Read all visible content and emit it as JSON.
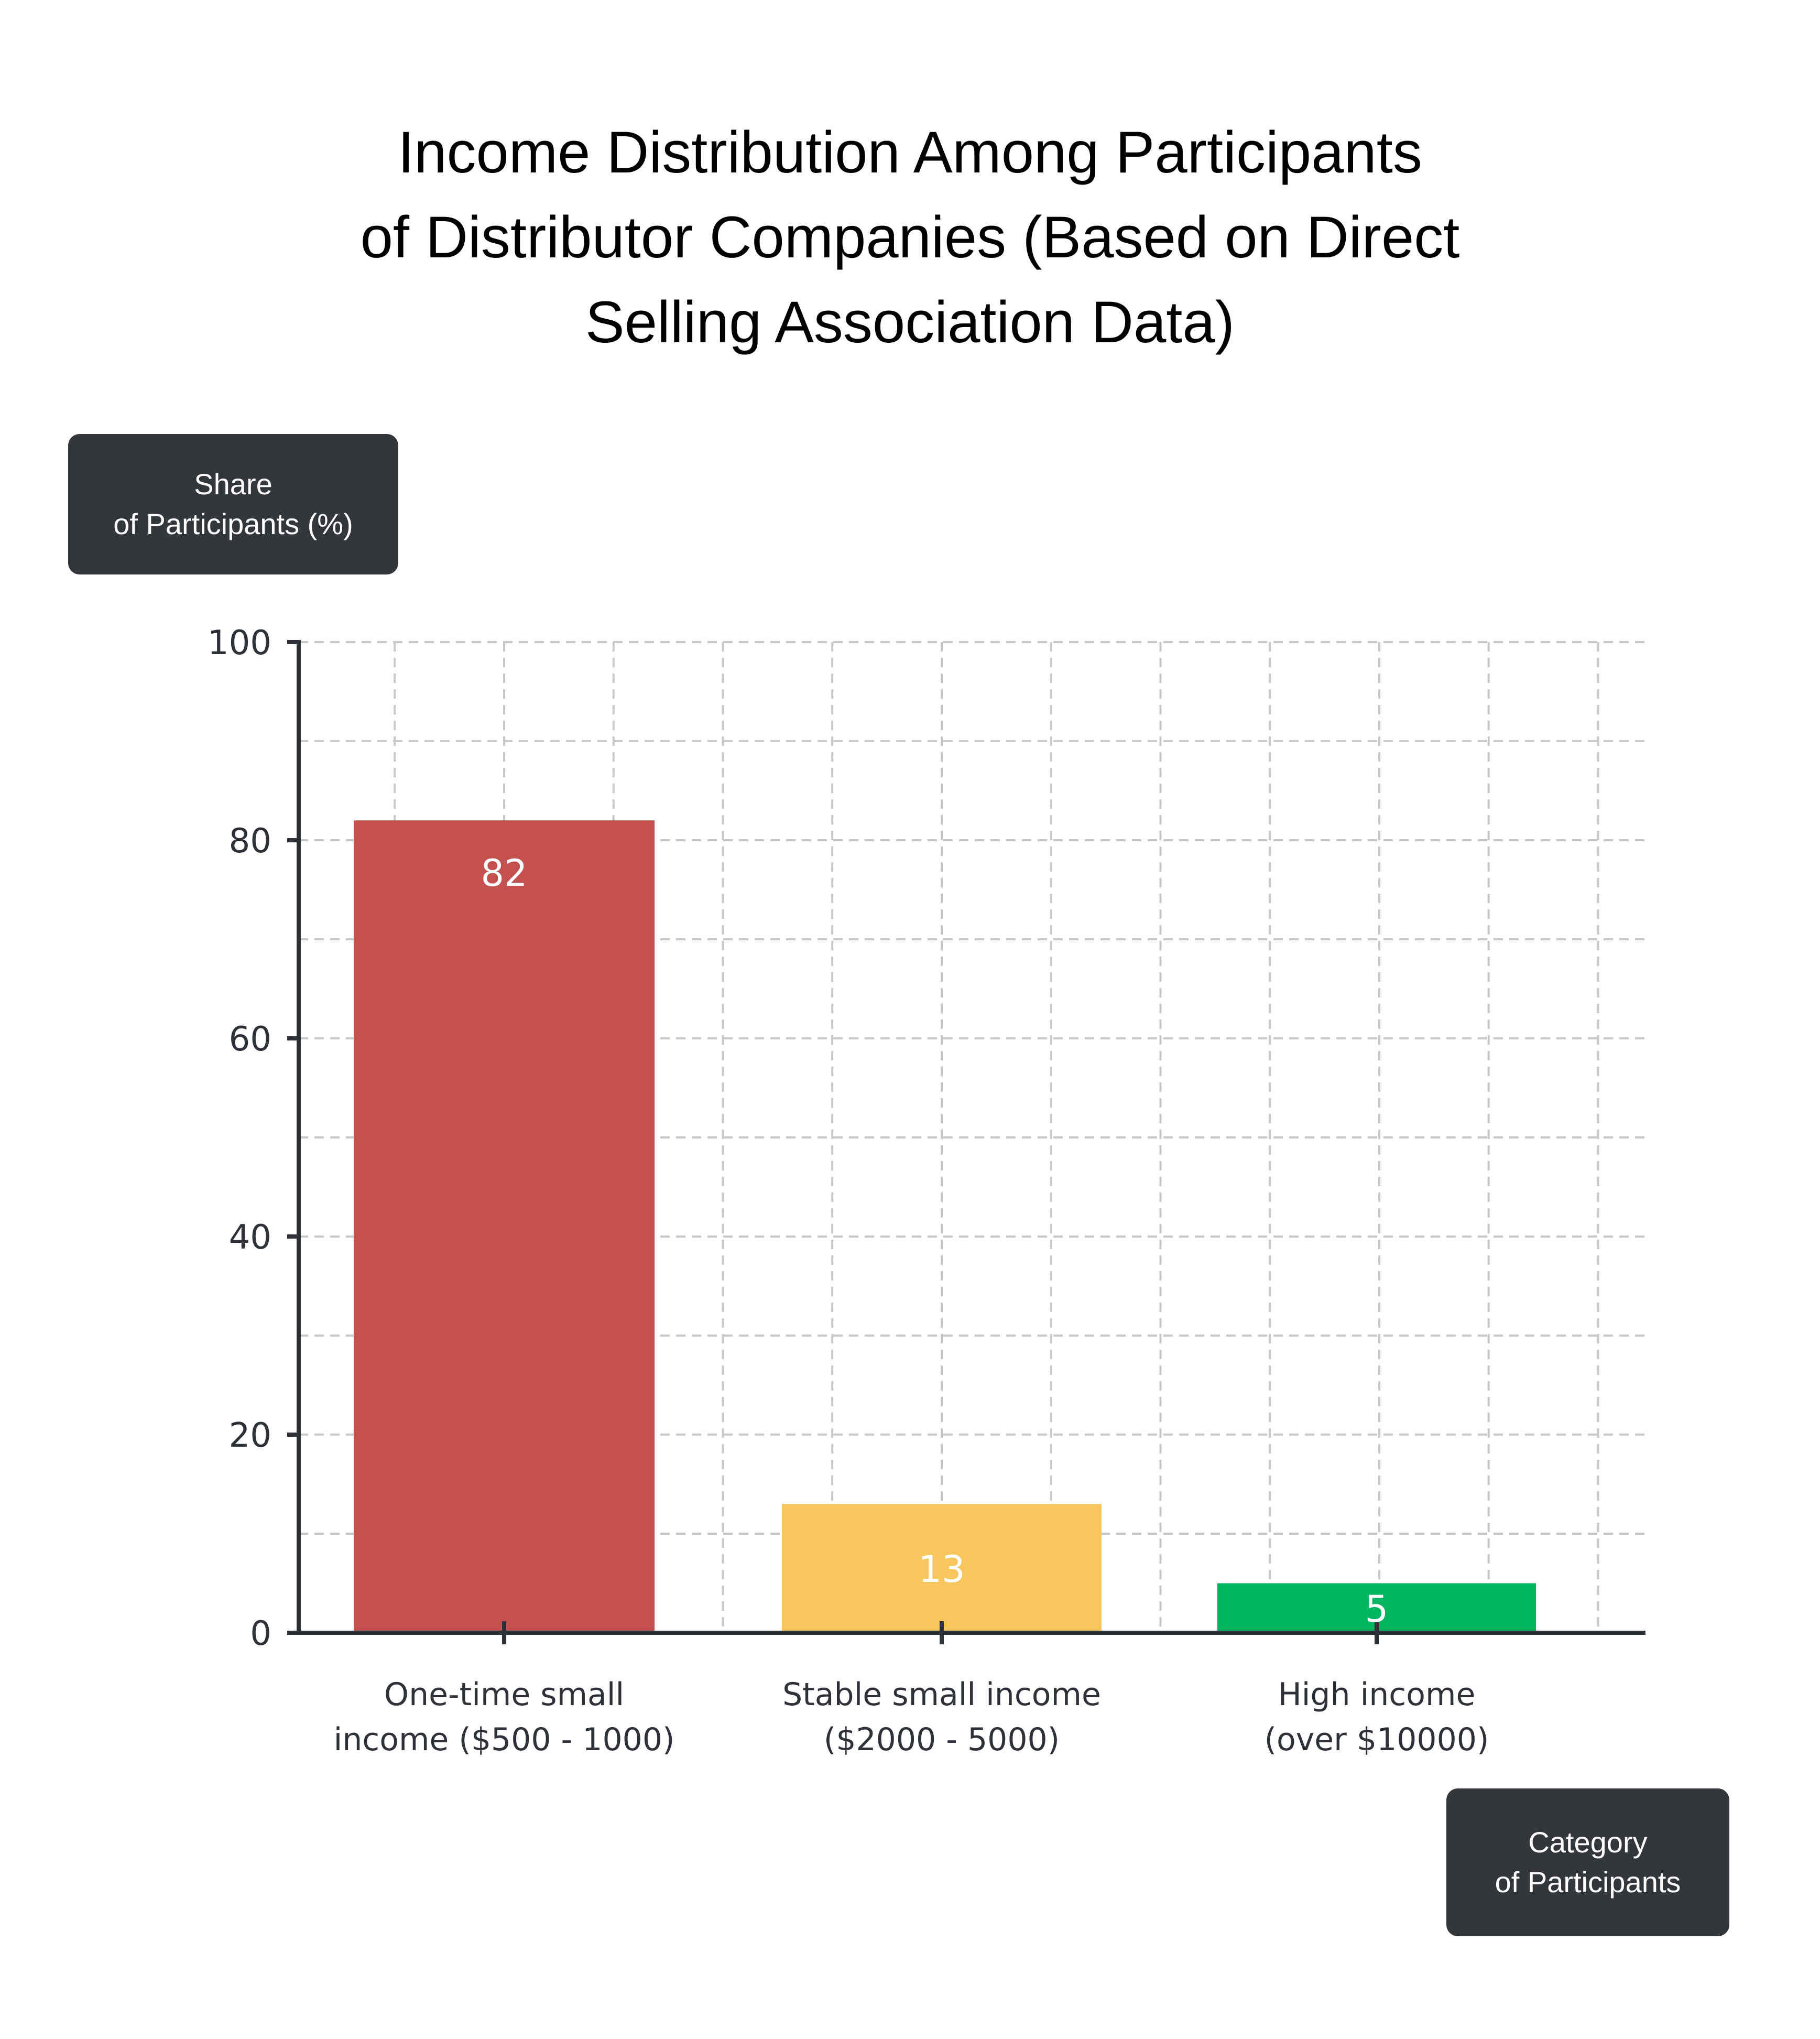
{
  "chart_data": {
    "type": "bar",
    "title": "Income Distribution Among Participants\nof Distributor Companies (Based on Direct\nSelling Association Data)",
    "ylabel": "Share\nof Participants (%)",
    "xlabel": "Category\nof Participants",
    "categories": [
      [
        "One-time small",
        "income ($500 - 1000)"
      ],
      [
        "Stable small income",
        "($2000 - 5000)"
      ],
      [
        "High income",
        "(over $10000)"
      ]
    ],
    "values": [
      82,
      13,
      5
    ],
    "value_labels": [
      "82",
      "13",
      "5"
    ],
    "colors": [
      "#c45050",
      "#f7c65c",
      "#00b460"
    ],
    "ylim": [
      0,
      100
    ],
    "yticks": [
      0,
      20,
      40,
      60,
      80,
      100
    ],
    "grid": true
  }
}
